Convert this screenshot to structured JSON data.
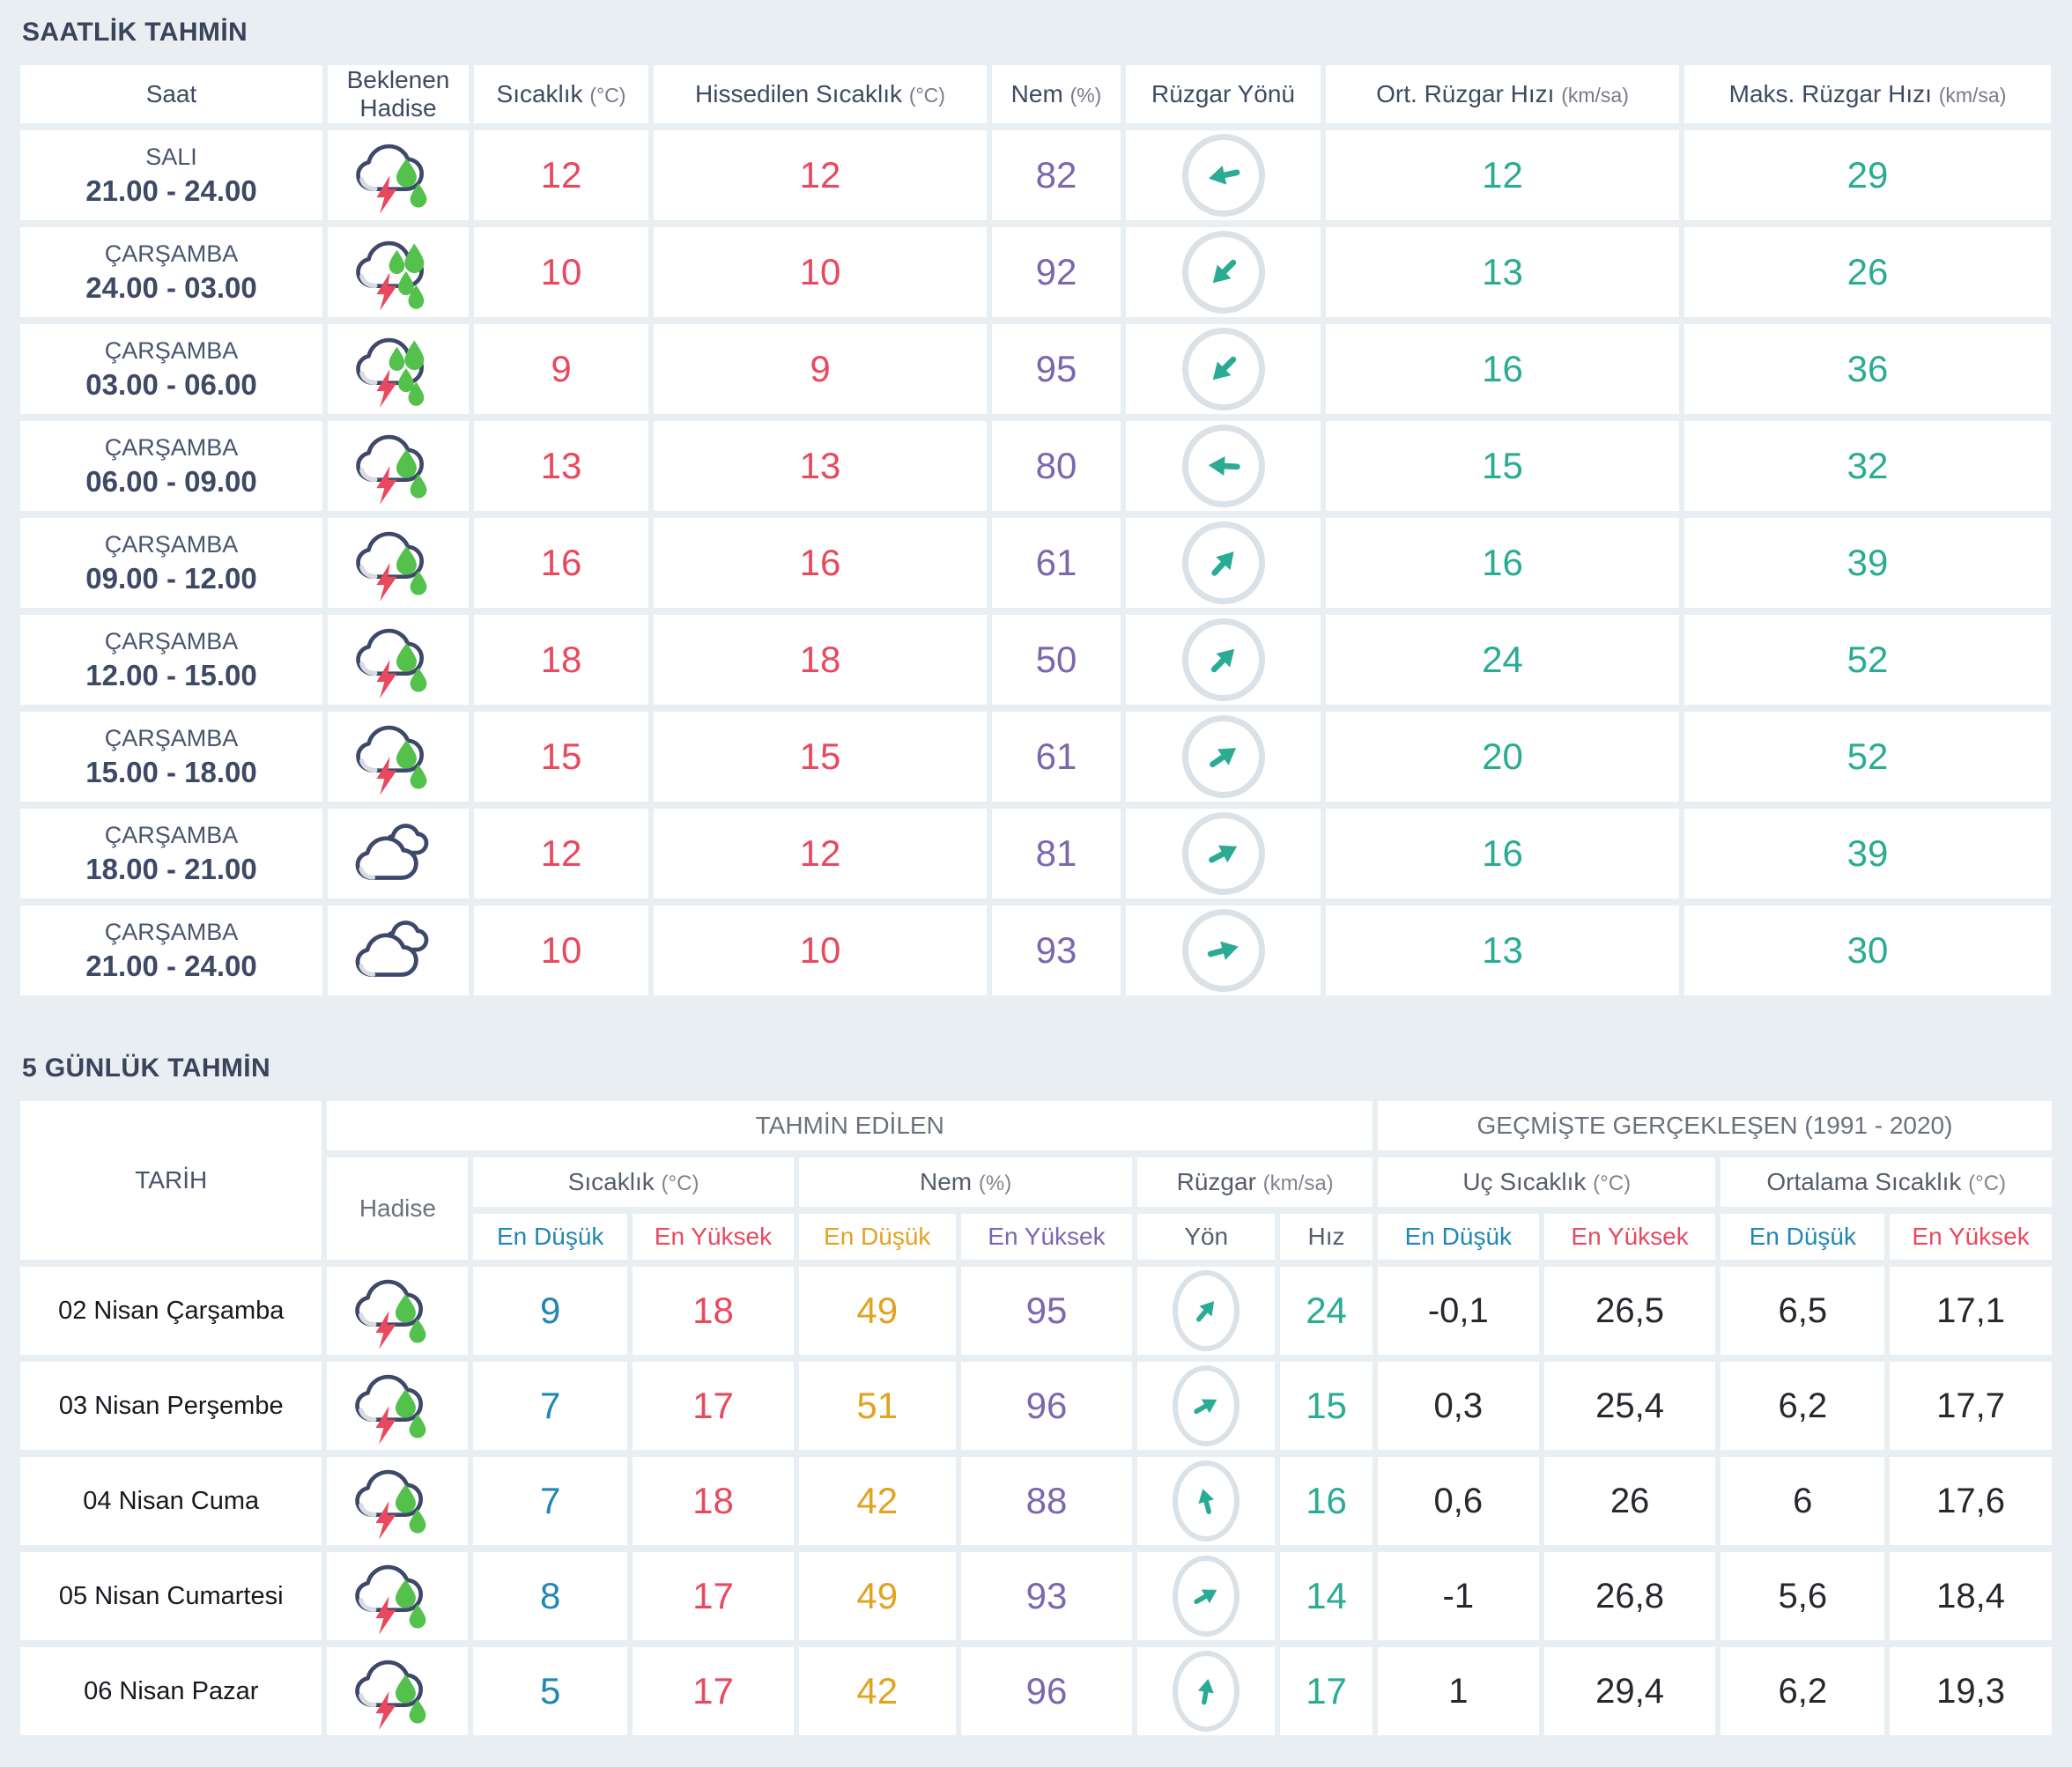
{
  "colors": {
    "background": "#e8eef1",
    "cell": "#ffffff",
    "title_navy": "#39435a",
    "header_navy": "#3f4a63",
    "header_gray": "#6b717d",
    "temp_red": "#e8495e",
    "humidity_purple": "#7c66ad",
    "wind_teal": "#2aab94",
    "min_blue": "#2187b2",
    "min_orange": "#e2a321",
    "historical_dark": "#26282e",
    "wind_circle_border": "#dae1e7",
    "icon_cloud_outline": "#3d486b",
    "icon_bolt_red": "#e8495e",
    "icon_drop_green": "#53c14b"
  },
  "hourly": {
    "title": "SAATLİK TAHMİN",
    "columns": {
      "saat": "Saat",
      "hadise_line1": "Beklenen",
      "hadise_line2": "Hadise",
      "sicaklik": "Sıcaklık",
      "sicaklik_unit": "(°C)",
      "hissedilen": "Hissedilen Sıcaklık",
      "hissedilen_unit": "(°C)",
      "nem": "Nem",
      "nem_unit": "(%)",
      "ruzgar_yonu": "Rüzgar Yönü",
      "ort": "Ort. Rüzgar Hızı",
      "ort_unit": "(km/sa)",
      "maks": "Maks. Rüzgar Hızı",
      "maks_unit": "(km/sa)"
    },
    "rows": [
      {
        "day": "SALI",
        "time": "21.00 - 24.00",
        "condition": "thunderstorm",
        "temp": "12",
        "feels": "12",
        "humidity": "82",
        "wind_dir_rotation_deg": 168,
        "avg_wind": "12",
        "max_wind": "29"
      },
      {
        "day": "ÇARŞAMBA",
        "time": "24.00 - 03.00",
        "condition": "heavy-thunderstorm",
        "temp": "10",
        "feels": "10",
        "humidity": "92",
        "wind_dir_rotation_deg": 135,
        "avg_wind": "13",
        "max_wind": "26"
      },
      {
        "day": "ÇARŞAMBA",
        "time": "03.00 - 06.00",
        "condition": "heavy-thunderstorm",
        "temp": "9",
        "feels": "9",
        "humidity": "95",
        "wind_dir_rotation_deg": 135,
        "avg_wind": "16",
        "max_wind": "36"
      },
      {
        "day": "ÇARŞAMBA",
        "time": "06.00 - 09.00",
        "condition": "thunderstorm",
        "temp": "13",
        "feels": "13",
        "humidity": "80",
        "wind_dir_rotation_deg": 183,
        "avg_wind": "15",
        "max_wind": "32"
      },
      {
        "day": "ÇARŞAMBA",
        "time": "09.00 - 12.00",
        "condition": "thunderstorm",
        "temp": "16",
        "feels": "16",
        "humidity": "61",
        "wind_dir_rotation_deg": -48,
        "avg_wind": "16",
        "max_wind": "39"
      },
      {
        "day": "ÇARŞAMBA",
        "time": "12.00 - 15.00",
        "condition": "thunderstorm",
        "temp": "18",
        "feels": "18",
        "humidity": "50",
        "wind_dir_rotation_deg": -45,
        "avg_wind": "24",
        "max_wind": "52"
      },
      {
        "day": "ÇARŞAMBA",
        "time": "15.00 - 18.00",
        "condition": "thunderstorm",
        "temp": "15",
        "feels": "15",
        "humidity": "61",
        "wind_dir_rotation_deg": -35,
        "avg_wind": "20",
        "max_wind": "52"
      },
      {
        "day": "ÇARŞAMBA",
        "time": "18.00 - 21.00",
        "condition": "mostly-cloudy",
        "temp": "12",
        "feels": "12",
        "humidity": "81",
        "wind_dir_rotation_deg": -28,
        "avg_wind": "16",
        "max_wind": "39"
      },
      {
        "day": "ÇARŞAMBA",
        "time": "21.00 - 24.00",
        "condition": "mostly-cloudy",
        "temp": "10",
        "feels": "10",
        "humidity": "93",
        "wind_dir_rotation_deg": -15,
        "avg_wind": "13",
        "max_wind": "30"
      }
    ]
  },
  "daily": {
    "title": "5 GÜNLÜK TAHMİN",
    "columns": {
      "tarih": "TARİH",
      "tahmin": "TAHMİN EDİLEN",
      "gecmis": "GEÇMİŞTE GERÇEKLEŞEN (1991 - 2020)",
      "hadise": "Hadise",
      "sicaklik": "Sıcaklık",
      "sicaklik_unit": "(°C)",
      "nem": "Nem",
      "nem_unit": "(%)",
      "ruzgar": "Rüzgar",
      "ruzgar_unit": "(km/sa)",
      "uc": "Uç Sıcaklık",
      "uc_unit": "(°C)",
      "ortalama": "Ortalama Sıcaklık",
      "ortalama_unit": "(°C)",
      "en_dusuk": "En Düşük",
      "en_yuksek": "En Yüksek",
      "yon": "Yön",
      "hiz": "Hız"
    },
    "rows": [
      {
        "date": "02 Nisan Çarşamba",
        "condition": "thunderstorm",
        "temp_min": "9",
        "temp_max": "18",
        "hum_min": "49",
        "hum_max": "95",
        "wind_dir_rotation_deg": -50,
        "wind_speed": "24",
        "hist_min": "-0,1",
        "hist_max": "26,5",
        "avg_min": "6,5",
        "avg_max": "17,1"
      },
      {
        "date": "03 Nisan Perşembe",
        "condition": "thunderstorm",
        "temp_min": "7",
        "temp_max": "17",
        "hum_min": "51",
        "hum_max": "96",
        "wind_dir_rotation_deg": -30,
        "wind_speed": "15",
        "hist_min": "0,3",
        "hist_max": "25,4",
        "avg_min": "6,2",
        "avg_max": "17,7"
      },
      {
        "date": "04 Nisan Cuma",
        "condition": "thunderstorm",
        "temp_min": "7",
        "temp_max": "18",
        "hum_min": "42",
        "hum_max": "88",
        "wind_dir_rotation_deg": -105,
        "wind_speed": "16",
        "hist_min": "0,6",
        "hist_max": "26",
        "avg_min": "6",
        "avg_max": "17,6"
      },
      {
        "date": "05 Nisan Cumartesi",
        "condition": "thunderstorm",
        "temp_min": "8",
        "temp_max": "17",
        "hum_min": "49",
        "hum_max": "93",
        "wind_dir_rotation_deg": -30,
        "wind_speed": "14",
        "hist_min": "-1",
        "hist_max": "26,8",
        "avg_min": "5,6",
        "avg_max": "18,4"
      },
      {
        "date": "06 Nisan Pazar",
        "condition": "thunderstorm",
        "temp_min": "5",
        "temp_max": "17",
        "hum_min": "42",
        "hum_max": "96",
        "wind_dir_rotation_deg": -80,
        "wind_speed": "17",
        "hist_min": "1",
        "hist_max": "29,4",
        "avg_min": "6,2",
        "avg_max": "19,3"
      }
    ]
  }
}
